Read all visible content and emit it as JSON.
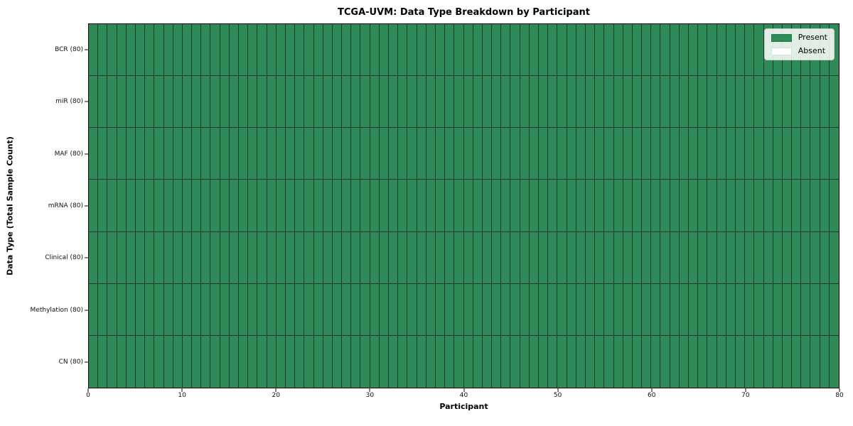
{
  "chart_data": {
    "type": "heatmap",
    "title": "TCGA-UVM: Data Type Breakdown by Participant",
    "xlabel": "Participant",
    "ylabel": "Data Type (Total Sample Count)",
    "xlim": [
      0,
      80
    ],
    "x_ticks": [
      0,
      10,
      20,
      30,
      40,
      50,
      60,
      70,
      80
    ],
    "n_participants": 80,
    "rows": [
      {
        "label": "BCR (80)",
        "total": 80,
        "present_participants": 80,
        "absent_participants": 0
      },
      {
        "label": "miR (80)",
        "total": 80,
        "present_participants": 80,
        "absent_participants": 0
      },
      {
        "label": "MAF (80)",
        "total": 80,
        "present_participants": 80,
        "absent_participants": 0
      },
      {
        "label": "mRNA (80)",
        "total": 80,
        "present_participants": 80,
        "absent_participants": 0
      },
      {
        "label": "Clinical (80)",
        "total": 80,
        "present_participants": 80,
        "absent_participants": 0
      },
      {
        "label": "Methylation (80)",
        "total": 80,
        "present_participants": 80,
        "absent_participants": 0
      },
      {
        "label": "CN (80)",
        "total": 80,
        "present_participants": 80,
        "absent_participants": 0
      }
    ],
    "legend": {
      "position": "upper right",
      "items": [
        {
          "label": "Present",
          "color": "#2e8b57"
        },
        {
          "label": "Absent",
          "color": "#ffffff"
        }
      ]
    },
    "colors": {
      "present": "#2e8b57",
      "absent": "#ffffff",
      "cell_border": "#1e3a2a",
      "spine": "#000000",
      "background": "#ffffff"
    },
    "grid": "cell outlines on; no outer gridlines"
  }
}
